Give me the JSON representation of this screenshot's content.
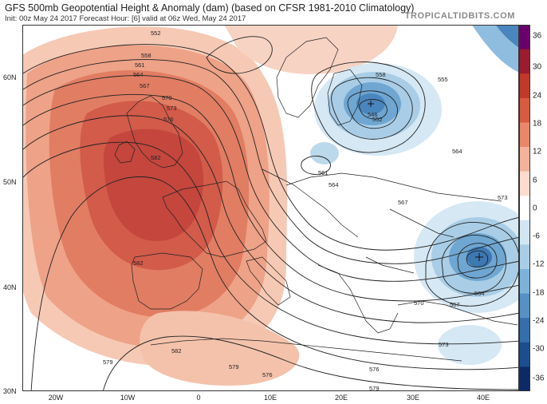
{
  "header": {
    "title": "GFS 500mb Geopotential Height & Anomaly (dam) (based on CFSR 1981-2010 Climatology)",
    "subtitle": "Init: 00z May 24 2017   Forecast Hour: [6]   valid at 06z Wed, May 24 2017",
    "brand": "TROPICALTIDBITS.COM"
  },
  "colorbar": {
    "labels": [
      "36",
      "30",
      "24",
      "18",
      "12",
      "6",
      "0",
      "-6",
      "-12",
      "-18",
      "-24",
      "-30",
      "-36"
    ],
    "colors": [
      "#6a006a",
      "#9b1b30",
      "#c0392b",
      "#d85a40",
      "#e8876a",
      "#f2b39a",
      "#fbdccd",
      "#ffffff",
      "#d2e5f2",
      "#a9cde6",
      "#7eb2d8",
      "#5591c4",
      "#336fad",
      "#1c4d8f",
      "#0d2a66"
    ]
  },
  "axes": {
    "lat_labels": [
      "60N",
      "50N",
      "40N",
      "30N"
    ],
    "lon_labels": [
      "20W",
      "10W",
      "0",
      "10E",
      "20E",
      "30E",
      "40E"
    ]
  },
  "contour_labels": [
    "552",
    "558",
    "561",
    "564",
    "567",
    "570",
    "573",
    "576",
    "579",
    "582",
    "558",
    "552",
    "546",
    "555",
    "564",
    "561",
    "564",
    "567",
    "570",
    "573",
    "576",
    "579",
    "564",
    "567",
    "573",
    "576",
    "579",
    "582",
    "582"
  ],
  "icons": {
    "map": "geopotential-height-anomaly-map"
  }
}
